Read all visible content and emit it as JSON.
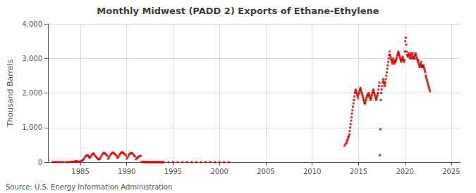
{
  "chart_data": {
    "type": "scatter",
    "title": "Monthly Midwest (PADD 2) Exports of Ethane-Ethylene",
    "ylabel": "Thousand Barrels",
    "annotations": [
      "Source: U.S. Energy Information Administration"
    ],
    "xlim": [
      1981.5,
      2026
    ],
    "xticks": [
      1985,
      1990,
      1995,
      2000,
      2005,
      2010,
      2015,
      2020,
      2025
    ],
    "ylim": [
      0,
      4000
    ],
    "yticks": [
      0,
      {
        "value": 1000,
        "label": "1,000"
      },
      {
        "value": 2000,
        "label": "2,000"
      },
      {
        "value": 3000,
        "label": "3,000"
      },
      {
        "value": 4000,
        "label": "4,000"
      }
    ],
    "grid": true,
    "series": [
      {
        "color": "#cc0000",
        "marker": "square",
        "x": [
          1982.0,
          1982.2,
          1982.4,
          1982.6,
          1982.8,
          1983.0,
          1983.2,
          1983.5,
          1983.7,
          1983.9,
          1984.0,
          1984.1,
          1984.2,
          1984.3,
          1984.4,
          1984.5,
          1984.6,
          1984.7,
          1984.8,
          1984.9,
          1985.0,
          1985.1,
          1985.2,
          1985.3,
          1985.4,
          1985.5,
          1985.6,
          1985.7,
          1985.8,
          1985.9,
          1985.95,
          1986.0,
          1986.1,
          1986.2,
          1986.3,
          1986.4,
          1986.5,
          1986.6,
          1986.7,
          1986.8,
          1986.9,
          1987.0,
          1987.1,
          1987.2,
          1987.3,
          1987.4,
          1987.5,
          1987.6,
          1987.7,
          1987.8,
          1987.9,
          1988.0,
          1988.1,
          1988.2,
          1988.3,
          1988.4,
          1988.5,
          1988.6,
          1988.7,
          1988.8,
          1988.9,
          1989.0,
          1989.1,
          1989.2,
          1989.3,
          1989.4,
          1989.5,
          1989.6,
          1989.7,
          1989.8,
          1989.9,
          1990.0,
          1990.1,
          1990.2,
          1990.3,
          1990.4,
          1990.5,
          1990.6,
          1990.7,
          1990.8,
          1990.9,
          1991.0,
          1991.1,
          1991.2,
          1991.3,
          1991.4,
          1991.5
        ],
        "values": [
          2,
          1,
          3,
          2,
          1,
          4,
          3,
          5,
          3,
          4,
          8,
          10,
          12,
          15,
          20,
          25,
          22,
          18,
          15,
          10,
          15,
          30,
          50,
          70,
          100,
          150,
          180,
          200,
          190,
          170,
          150,
          120,
          150,
          200,
          230,
          250,
          220,
          180,
          150,
          120,
          90,
          80,
          100,
          150,
          200,
          240,
          270,
          260,
          240,
          210,
          180,
          100,
          140,
          190,
          230,
          260,
          280,
          260,
          240,
          210,
          180,
          120,
          150,
          200,
          240,
          270,
          290,
          270,
          250,
          220,
          190,
          100,
          140,
          190,
          230,
          260,
          270,
          250,
          220,
          190,
          160,
          80,
          110,
          140,
          160,
          170,
          180
        ]
      },
      {
        "color": "#cc0000",
        "marker": "square",
        "x": [
          1991.6,
          1991.7,
          1991.8,
          1991.9,
          1992.0,
          1992.1,
          1992.2,
          1992.3,
          1992.4,
          1992.5,
          1992.6,
          1992.7,
          1992.8,
          1992.9,
          1993.0,
          1993.1,
          1993.2,
          1993.3,
          1993.4,
          1993.5,
          1993.6,
          1993.7,
          1993.8,
          1993.9,
          1994.0
        ],
        "values": [
          8,
          5,
          3,
          2,
          1,
          1,
          0,
          0,
          0,
          0,
          0,
          0,
          0,
          0,
          0,
          0,
          0,
          0,
          0,
          0,
          0,
          0,
          0,
          0,
          0
        ]
      },
      {
        "color": "#cc0000",
        "marker": "square",
        "x": [
          1994.5,
          1995.0,
          1995.5,
          1996.0,
          1996.5,
          1997.0,
          1997.5,
          1998.0,
          1998.5,
          1999.0,
          1999.5,
          2000.0,
          2000.5,
          2001.0
        ],
        "values": [
          1,
          0,
          1,
          0,
          0,
          0,
          0,
          0,
          0,
          0,
          0,
          0,
          0,
          0
        ]
      },
      {
        "color": "#cc0000",
        "marker": "square",
        "x": [
          2013.5,
          2013.6,
          2013.7,
          2013.75,
          2013.8,
          2013.85,
          2013.9,
          2013.95,
          2014.0,
          2014.05,
          2014.1,
          2014.15,
          2014.2,
          2014.25,
          2014.3,
          2014.35,
          2014.4,
          2014.45,
          2014.5,
          2014.55,
          2014.6,
          2014.65,
          2014.7,
          2014.75,
          2014.8,
          2014.85,
          2014.9,
          2014.95,
          2015.0,
          2015.05,
          2015.1,
          2015.15,
          2015.2,
          2015.25,
          2015.3,
          2015.35,
          2015.4,
          2015.45,
          2015.5,
          2015.55,
          2015.6,
          2015.65,
          2015.7,
          2015.75,
          2015.8,
          2015.85,
          2015.9,
          2015.95,
          2016.0,
          2016.05,
          2016.1,
          2016.15,
          2016.2,
          2016.25,
          2016.3,
          2016.35,
          2016.4,
          2016.45,
          2016.5,
          2016.55,
          2016.6,
          2016.65,
          2016.7,
          2016.75,
          2016.8,
          2016.85,
          2016.9,
          2016.95,
          2017.0,
          2017.05,
          2017.1,
          2017.15,
          2017.2,
          2017.25,
          2017.3,
          2017.35,
          2017.4,
          2017.45,
          2017.5,
          2017.55,
          2017.6,
          2017.65,
          2017.7,
          2017.75,
          2017.8,
          2017.85,
          2017.9,
          2017.95,
          2018.0,
          2018.05,
          2018.1,
          2018.15,
          2018.2,
          2018.25,
          2018.3,
          2018.35,
          2018.4,
          2018.45,
          2018.5,
          2018.55,
          2018.6,
          2018.65,
          2018.7,
          2018.75,
          2018.8,
          2018.85,
          2018.9,
          2018.95,
          2019.0,
          2019.05,
          2019.1,
          2019.15,
          2019.2,
          2019.25,
          2019.3,
          2019.35,
          2019.4,
          2019.45,
          2019.5,
          2019.55,
          2019.6,
          2019.65,
          2019.7,
          2019.75,
          2019.8,
          2019.85,
          2019.9,
          2019.95,
          2020.0,
          2020.05,
          2020.1,
          2020.15,
          2020.2,
          2020.25,
          2020.3,
          2020.35,
          2020.4,
          2020.45,
          2020.5,
          2020.55,
          2020.6,
          2020.65,
          2020.7,
          2020.75,
          2020.8,
          2020.85,
          2020.9,
          2020.95,
          2021.0,
          2021.05,
          2021.1,
          2021.15,
          2021.2,
          2021.25,
          2021.3,
          2021.35,
          2021.4,
          2021.45,
          2021.5,
          2021.55,
          2021.6,
          2021.65,
          2021.7,
          2021.75,
          2021.8,
          2021.85,
          2021.9,
          2021.95,
          2022.0,
          2022.05,
          2022.1,
          2022.15,
          2022.2,
          2022.25,
          2022.3,
          2022.35,
          2022.4,
          2022.45,
          2022.5,
          2022.55,
          2022.6,
          2022.65,
          2022.7
        ],
        "values": [
          480,
          520,
          560,
          600,
          640,
          680,
          720,
          750,
          800,
          900,
          1000,
          1100,
          1200,
          1300,
          1400,
          1500,
          1600,
          1700,
          1800,
          1900,
          2000,
          2050,
          2100,
          2050,
          2000,
          1950,
          1900,
          1850,
          1950,
          2000,
          2050,
          2100,
          2150,
          2100,
          2050,
          2000,
          1950,
          1900,
          1850,
          1800,
          1750,
          1700,
          1700,
          1750,
          1800,
          1850,
          1900,
          1950,
          1900,
          1950,
          2000,
          1950,
          1900,
          1850,
          1800,
          1850,
          1900,
          1950,
          2000,
          2050,
          2100,
          2050,
          2000,
          1950,
          1900,
          1850,
          1800,
          1850,
          1900,
          1950,
          2000,
          2100,
          2200,
          2300,
          200,
          950,
          1800,
          2000,
          2100,
          2200,
          2300,
          2400,
          2350,
          2300,
          2250,
          2200,
          2300,
          2400,
          2500,
          2600,
          2700,
          2800,
          2900,
          3000,
          3100,
          3200,
          3100,
          3050,
          3000,
          2950,
          2900,
          2850,
          2950,
          3000,
          2900,
          2850,
          2900,
          2950,
          2900,
          2950,
          3000,
          3050,
          3100,
          3150,
          3200,
          3150,
          3100,
          3050,
          3000,
          2950,
          2900,
          2950,
          3000,
          3050,
          3000,
          2950,
          2900,
          2950,
          3200,
          3500,
          3600,
          3400,
          3200,
          3100,
          3050,
          3100,
          3150,
          3100,
          3050,
          3000,
          3100,
          3150,
          3050,
          3000,
          3100,
          3150,
          3050,
          3000,
          3050,
          3000,
          3100,
          3150,
          3100,
          3050,
          3000,
          2950,
          2900,
          2950,
          2850,
          2800,
          2750,
          2800,
          2850,
          2900,
          2800,
          2750,
          2800,
          2750,
          2800,
          2750,
          2700,
          2650,
          2600,
          2500,
          2450,
          2400,
          2350,
          2300,
          2250,
          2200,
          2150,
          2100,
          2050
        ]
      }
    ]
  }
}
